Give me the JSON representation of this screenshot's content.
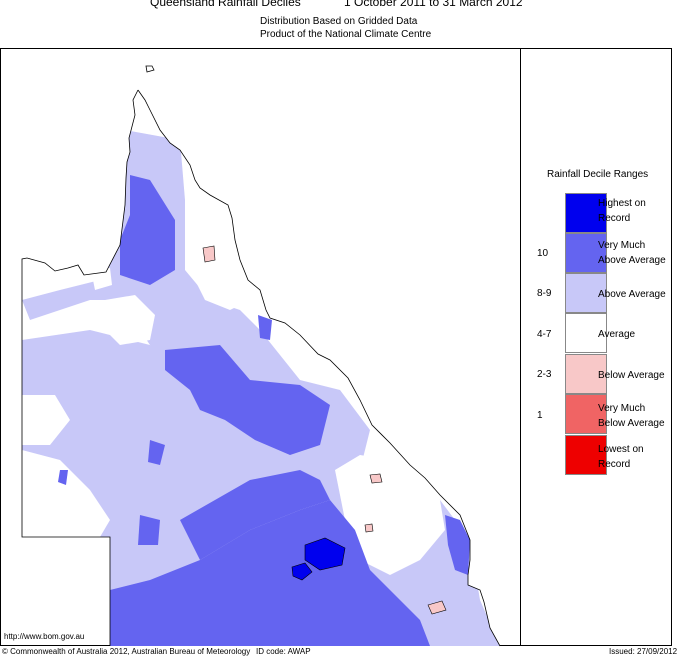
{
  "header": {
    "title": "Queensland Rainfall Deciles",
    "dates": "1 October 2011 to 31 March 2012",
    "subtitle1": "Distribution Based on Gridded Data",
    "subtitle2": "Product of the National Climate Centre"
  },
  "legend": {
    "title": "Rainfall Decile Ranges",
    "items": [
      {
        "label": "Highest on Record",
        "range": "",
        "color": "#0000ee"
      },
      {
        "label": "Very Much Above Average",
        "range": "10",
        "color": "#6464f0"
      },
      {
        "label": "Above Average",
        "range": "8-9",
        "color": "#c8c8f8"
      },
      {
        "label": "Average",
        "range": "4-7",
        "color": "#ffffff"
      },
      {
        "label": "Below Average",
        "range": "2-3",
        "color": "#f8c8c8"
      },
      {
        "label": "Very Much Below Average",
        "range": "1",
        "color": "#f06464"
      },
      {
        "label": "Lowest on Record",
        "range": "",
        "color": "#ee0000"
      }
    ]
  },
  "footer": {
    "url": "http://www.bom.gov.au",
    "copyright": "© Commonwealth of Australia 2012, Australian Bureau of Meteorology",
    "id_code": "ID code: AWAP",
    "issued": "Issued: 27/09/2012"
  }
}
